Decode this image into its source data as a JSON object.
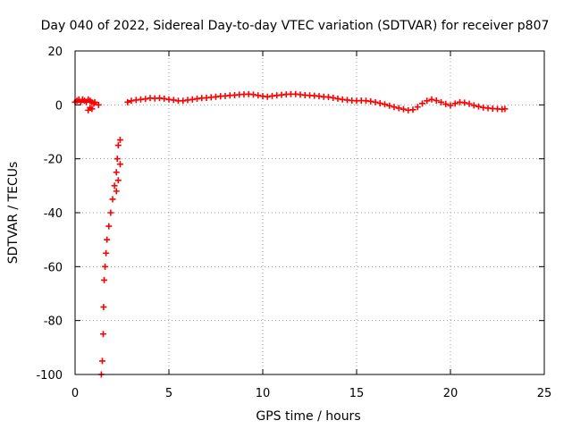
{
  "chart_data": {
    "type": "scatter",
    "title": "Day 040 of 2022, Sidereal Day-to-day VTEC variation (SDTVAR) for receiver p807",
    "xlabel": "GPS time / hours",
    "ylabel": "SDTVAR / TECUs",
    "xlim": [
      0,
      25
    ],
    "ylim": [
      -100,
      20
    ],
    "xticks": [
      "0",
      "5",
      "10",
      "15",
      "20",
      "25"
    ],
    "yticks": [
      "20",
      "0",
      "-20",
      "-40",
      "-60",
      "-80",
      "-100"
    ],
    "grid": true,
    "marker": "+",
    "series": [
      {
        "name": "SDTVAR",
        "color": "#ff0000",
        "x": [
          0.0,
          0.1,
          0.2,
          0.3,
          0.4,
          0.5,
          0.6,
          0.7,
          0.8,
          0.9,
          1.0,
          0.7,
          0.8,
          0.9,
          1.05,
          1.25,
          1.4,
          1.45,
          1.5,
          1.52,
          1.55,
          1.6,
          1.65,
          1.7,
          1.8,
          1.9,
          2.0,
          2.1,
          2.2,
          2.25,
          2.3,
          2.4,
          2.2,
          2.3,
          2.4,
          2.8,
          3.0,
          3.25,
          3.5,
          3.75,
          4.0,
          4.25,
          4.5,
          4.75,
          5.0,
          5.25,
          5.5,
          5.75,
          6.0,
          6.25,
          6.5,
          6.75,
          7.0,
          7.25,
          7.5,
          7.75,
          8.0,
          8.25,
          8.5,
          8.75,
          9.0,
          9.25,
          9.5,
          9.75,
          10.0,
          10.25,
          10.5,
          10.75,
          11.0,
          11.25,
          11.5,
          11.75,
          12.0,
          12.25,
          12.5,
          12.75,
          13.0,
          13.25,
          13.5,
          13.75,
          14.0,
          14.25,
          14.5,
          14.75,
          15.0,
          15.25,
          15.5,
          15.75,
          16.0,
          16.25,
          16.5,
          16.75,
          17.0,
          17.25,
          17.5,
          17.75,
          18.0,
          18.25,
          18.5,
          18.75,
          19.0,
          19.25,
          19.5,
          19.75,
          20.0,
          20.25,
          20.5,
          20.75,
          21.0,
          21.25,
          21.5,
          21.75,
          22.0,
          22.25,
          22.5,
          22.75,
          22.9
        ],
        "y": [
          1.0,
          1.5,
          2.0,
          1.0,
          2.0,
          1.5,
          1.0,
          2.0,
          1.5,
          1.0,
          0.5,
          -2.0,
          -1.0,
          -1.5,
          1.0,
          0.0,
          -100.0,
          -95.0,
          -85.0,
          -75.0,
          -65.0,
          -60.0,
          -55.0,
          -50.0,
          -45.0,
          -40.0,
          -35.0,
          -30.0,
          -25.0,
          -20.0,
          -15.0,
          -13.0,
          -32.0,
          -28.0,
          -22.0,
          1.0,
          1.5,
          1.8,
          2.0,
          2.2,
          2.5,
          2.4,
          2.5,
          2.3,
          2.0,
          1.8,
          1.5,
          1.5,
          1.8,
          2.0,
          2.3,
          2.5,
          2.6,
          2.8,
          3.0,
          3.2,
          3.3,
          3.5,
          3.6,
          3.8,
          3.9,
          4.0,
          3.8,
          3.5,
          3.2,
          3.0,
          3.3,
          3.5,
          3.7,
          3.9,
          4.0,
          4.0,
          3.8,
          3.6,
          3.5,
          3.4,
          3.2,
          3.0,
          2.9,
          2.6,
          2.3,
          2.0,
          1.8,
          1.6,
          1.5,
          1.6,
          1.5,
          1.3,
          1.0,
          0.6,
          0.2,
          -0.3,
          -0.8,
          -1.2,
          -1.6,
          -2.0,
          -1.8,
          -0.8,
          0.5,
          1.5,
          2.0,
          1.6,
          1.0,
          0.3,
          -0.2,
          0.5,
          1.0,
          0.8,
          0.4,
          -0.2,
          -0.6,
          -1.0,
          -1.2,
          -1.4,
          -1.5,
          -1.6,
          -1.5
        ]
      }
    ]
  }
}
